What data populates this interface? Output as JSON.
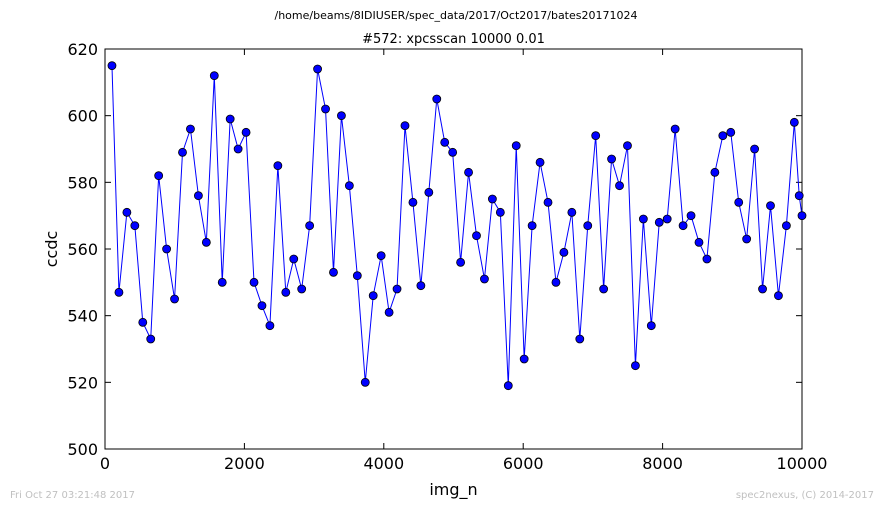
{
  "header": {
    "suptitle": "/home/beams/8IDIUSER/spec_data/2017/Oct2017/bates20171024"
  },
  "footer": {
    "timestamp": "Fri Oct 27 03:21:48 2017",
    "credit": "spec2nexus, (C) 2014-2017"
  },
  "chart_data": {
    "type": "line",
    "title": "#572: xpcsscan 10000 0.01",
    "xlabel": "img_n",
    "ylabel": "ccdc",
    "xlim": [
      0,
      10000
    ],
    "ylim": [
      500,
      620
    ],
    "xticks": [
      0,
      2000,
      4000,
      6000,
      8000,
      10000
    ],
    "yticks": [
      500,
      520,
      540,
      560,
      580,
      600,
      620
    ],
    "line_color": "#0000ff",
    "marker": "circle",
    "marker_color": "#0000ff",
    "series": [
      {
        "x": [
          100,
          200,
          314,
          428,
          542,
          656,
          770,
          884,
          998,
          1112,
          1226,
          1340,
          1454,
          1568,
          1682,
          1796,
          1910,
          2024,
          2138,
          2252,
          2366,
          2480,
          2594,
          2708,
          2822,
          2936,
          3050,
          3164,
          3278,
          3392,
          3506,
          3620,
          3734,
          3848,
          3962,
          4076,
          4190,
          4304,
          4418,
          4532,
          4646,
          4760,
          4874,
          4988,
          5102,
          5216,
          5330,
          5444,
          5558,
          5672,
          5786,
          5900,
          6014,
          6128,
          6242,
          6356,
          6470,
          6584,
          6698,
          6812,
          6926,
          7040,
          7154,
          7268,
          7382,
          7496,
          7610,
          7724,
          7838,
          7952,
          8066,
          8180,
          8294,
          8408,
          8522,
          8636,
          8750,
          8864,
          8978,
          9092,
          9206,
          9320,
          9434,
          9548,
          9662,
          9776,
          9890,
          9960,
          10000
        ],
        "y": [
          615,
          547,
          571,
          567,
          538,
          533,
          582,
          560,
          545,
          589,
          596,
          576,
          562,
          612,
          550,
          599,
          590,
          595,
          550,
          543,
          537,
          585,
          547,
          557,
          548,
          567,
          614,
          602,
          553,
          600,
          579,
          552,
          520,
          546,
          558,
          541,
          548,
          597,
          574,
          549,
          577,
          605,
          592,
          589,
          556,
          583,
          564,
          551,
          575,
          571,
          519,
          591,
          527,
          567,
          586,
          574,
          550,
          559,
          571,
          533,
          567,
          594,
          548,
          587,
          579,
          591,
          525,
          569,
          537,
          568,
          569,
          596,
          567,
          570,
          562,
          557,
          583,
          594,
          595,
          574,
          563,
          590,
          548,
          573,
          546,
          567,
          598,
          576,
          570
        ]
      }
    ]
  }
}
